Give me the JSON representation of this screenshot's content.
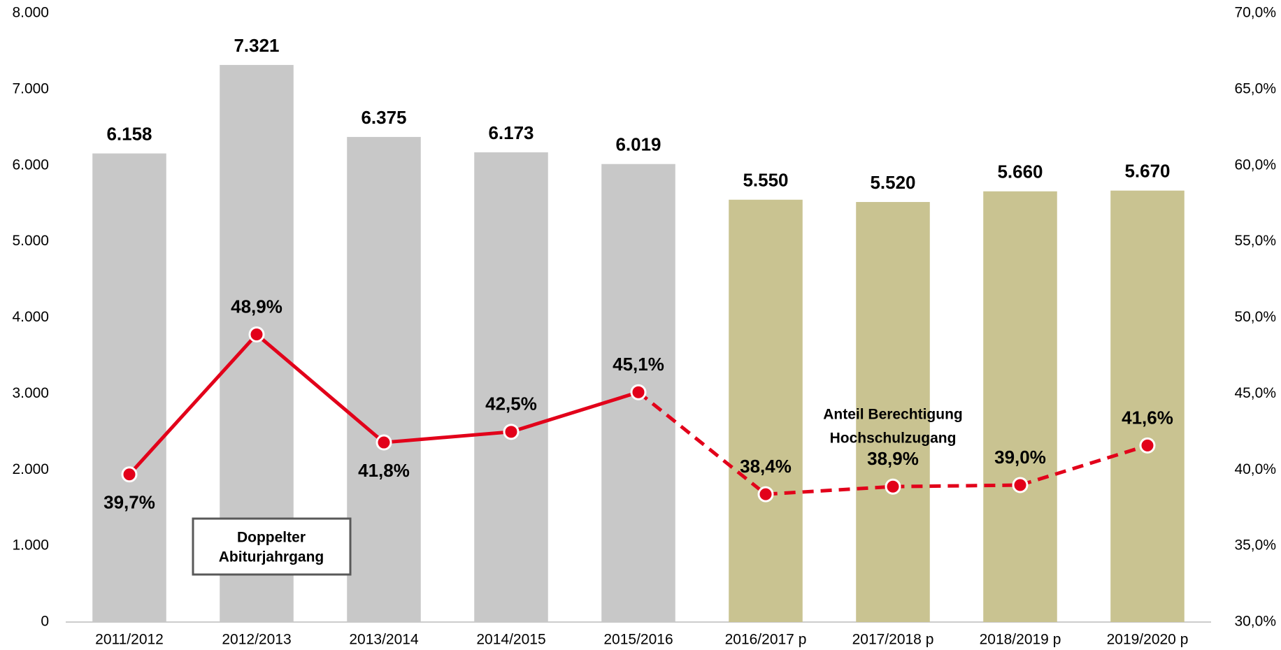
{
  "chart_data": {
    "type": "bar_line",
    "categories": [
      "2011/2012",
      "2012/2013",
      "2013/2014",
      "2014/2015",
      "2015/2016",
      "2016/2017 p",
      "2017/2018 p",
      "2018/2019 p",
      "2019/2020 p"
    ],
    "series": [
      {
        "type": "bar",
        "colors": [
          "#c8c8c8",
          "#c8c8c8",
          "#c8c8c8",
          "#c8c8c8",
          "#c8c8c8",
          "#c9c391",
          "#c9c391",
          "#c9c391",
          "#c9c391"
        ],
        "values": [
          6158,
          7321,
          6375,
          6173,
          6019,
          5550,
          5520,
          5660,
          5670
        ],
        "value_labels": [
          "6.158",
          "7.321",
          "6.375",
          "6.173",
          "6.019",
          "5.550",
          "5.520",
          "5.660",
          "5.670"
        ]
      },
      {
        "type": "line",
        "axis": "y2",
        "color": "#e2001a",
        "dash_from": 4,
        "values": [
          39.7,
          48.9,
          41.8,
          42.5,
          45.1,
          38.4,
          38.9,
          39.0,
          41.6
        ],
        "value_labels": [
          "39,7%",
          "48,9%",
          "41,8%",
          "42,5%",
          "45,1%",
          "38,4%",
          "38,9%",
          "39,0%",
          "41,6%"
        ],
        "label_positions": [
          "below",
          "above",
          "below",
          "above",
          "above",
          "above",
          "above",
          "above",
          "above"
        ]
      }
    ],
    "ylim": [
      0,
      8000
    ],
    "yticks": [
      0,
      {
        "value": 1000,
        "label": "1.000"
      },
      {
        "value": 2000,
        "label": "2.000"
      },
      {
        "value": 3000,
        "label": "3.000"
      },
      {
        "value": 4000,
        "label": "4.000"
      },
      {
        "value": 5000,
        "label": "5.000"
      },
      {
        "value": 6000,
        "label": "6.000"
      },
      {
        "value": 7000,
        "label": "7.000"
      },
      {
        "value": 8000,
        "label": "8.000"
      }
    ],
    "y2lim": [
      30,
      70
    ],
    "y2ticks": [
      {
        "value": 30,
        "label": "30,0%"
      },
      {
        "value": 35,
        "label": "35,0%"
      },
      {
        "value": 40,
        "label": "40,0%"
      },
      {
        "value": 45,
        "label": "45,0%"
      },
      {
        "value": 50,
        "label": "50,0%"
      },
      {
        "value": 55,
        "label": "55,0%"
      },
      {
        "value": 60,
        "label": "60,0%"
      },
      {
        "value": 65,
        "label": "65,0%"
      },
      {
        "value": 70,
        "label": "70,0%"
      }
    ],
    "annotations": [
      {
        "lines": [
          "Doppelter",
          "Abiturjahrgang"
        ]
      },
      {
        "lines": [
          "Anteil Berechtigung",
          "Hochschulzugang"
        ]
      }
    ]
  }
}
